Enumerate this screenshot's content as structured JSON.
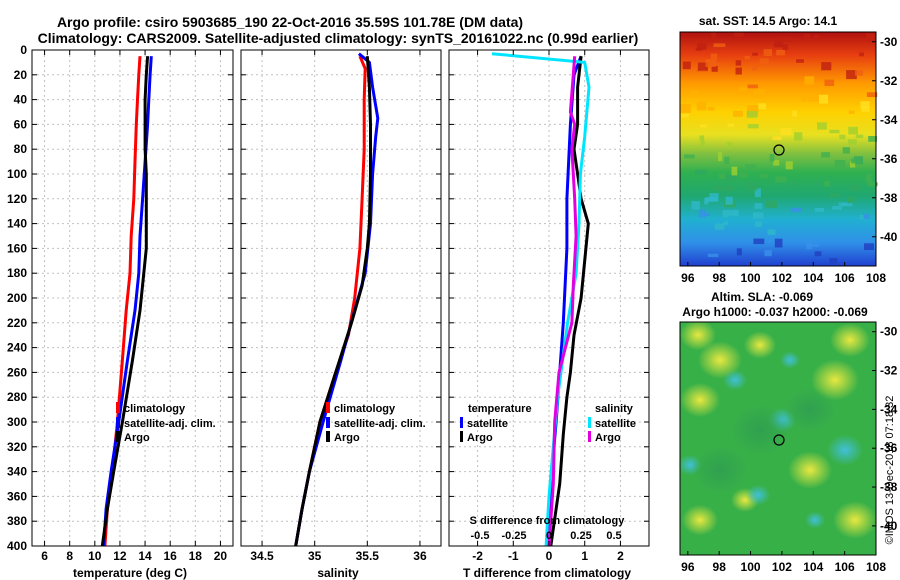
{
  "header": {
    "line1": "Argo profile: csiro 5903685_190 22-Oct-2016 35.59S 101.78E (DM data)",
    "line2": "Climatology: CARS2009. Satellite-adjusted climatology: synTS_20161022.nc (0.99d earlier)"
  },
  "colors": {
    "climatology": "#ff0000",
    "satellite": "#0000ff",
    "argo": "#000000",
    "sat_salinity": "#00e5ff",
    "argo_salinity": "#e000e0",
    "grid": "#c0c0c0"
  },
  "chart_data": [
    {
      "type": "line",
      "title": "",
      "xlabel": "temperature (deg C)",
      "ylabel": "",
      "xlim": [
        5,
        21
      ],
      "ylim": [
        400,
        0
      ],
      "xticks": [
        6,
        8,
        10,
        12,
        14,
        16,
        18,
        20
      ],
      "yticks": [
        0,
        20,
        40,
        60,
        80,
        100,
        120,
        140,
        160,
        180,
        200,
        220,
        240,
        260,
        280,
        300,
        320,
        340,
        360,
        380,
        400
      ],
      "legend": [
        "climatology",
        "satellite-adj. clim.",
        "Argo"
      ],
      "series": [
        {
          "name": "climatology",
          "points": [
            [
              13.6,
              5
            ],
            [
              13.5,
              20
            ],
            [
              13.4,
              40
            ],
            [
              13.3,
              60
            ],
            [
              13.2,
              90
            ],
            [
              13.1,
              120
            ],
            [
              12.9,
              150
            ],
            [
              12.8,
              180
            ],
            [
              12.5,
              210
            ],
            [
              12.2,
              250
            ],
            [
              11.8,
              300
            ],
            [
              11.4,
              340
            ],
            [
              11.0,
              370
            ],
            [
              10.8,
              400
            ]
          ]
        },
        {
          "name": "satellite-adj. clim.",
          "points": [
            [
              14.5,
              5
            ],
            [
              14.4,
              20
            ],
            [
              14.3,
              40
            ],
            [
              14.2,
              60
            ],
            [
              14.0,
              90
            ],
            [
              13.8,
              120
            ],
            [
              13.6,
              150
            ],
            [
              13.5,
              180
            ],
            [
              13.2,
              210
            ],
            [
              12.6,
              250
            ],
            [
              11.9,
              300
            ],
            [
              11.3,
              340
            ],
            [
              10.9,
              370
            ],
            [
              10.7,
              400
            ]
          ]
        },
        {
          "name": "Argo",
          "points": [
            [
              14.2,
              5
            ],
            [
              14.1,
              20
            ],
            [
              14.0,
              40
            ],
            [
              14.0,
              60
            ],
            [
              14.0,
              80
            ],
            [
              14.1,
              100
            ],
            [
              14.1,
              130
            ],
            [
              14.1,
              160
            ],
            [
              13.9,
              180
            ],
            [
              13.6,
              210
            ],
            [
              13.0,
              250
            ],
            [
              12.2,
              300
            ],
            [
              11.5,
              340
            ],
            [
              11.0,
              370
            ],
            [
              10.6,
              400
            ]
          ]
        }
      ]
    },
    {
      "type": "line",
      "xlabel": "salinity",
      "xlim": [
        34.3,
        36.2
      ],
      "xticks": [
        "34.5",
        "35",
        "35.5",
        "36"
      ],
      "ylim": [
        400,
        0
      ],
      "legend": [
        "climatology",
        "satellite-adj. clim.",
        "Argo"
      ],
      "series": [
        {
          "name": "climatology",
          "points": [
            [
              35.43,
              5
            ],
            [
              35.48,
              15
            ],
            [
              35.47,
              40
            ],
            [
              35.47,
              80
            ],
            [
              35.45,
              120
            ],
            [
              35.43,
              160
            ],
            [
              35.38,
              200
            ],
            [
              35.32,
              230
            ],
            [
              35.2,
              260
            ],
            [
              35.05,
              300
            ],
            [
              34.95,
              340
            ],
            [
              34.88,
              370
            ],
            [
              34.82,
              400
            ]
          ]
        },
        {
          "name": "satellite-adj. clim.",
          "points": [
            [
              35.42,
              3
            ],
            [
              35.52,
              10
            ],
            [
              35.55,
              30
            ],
            [
              35.6,
              55
            ],
            [
              35.58,
              70
            ],
            [
              35.55,
              100
            ],
            [
              35.53,
              140
            ],
            [
              35.48,
              180
            ],
            [
              35.38,
              210
            ],
            [
              35.25,
              250
            ],
            [
              35.08,
              300
            ],
            [
              34.95,
              340
            ],
            [
              34.88,
              370
            ],
            [
              34.82,
              400
            ]
          ]
        },
        {
          "name": "Argo",
          "points": [
            [
              35.5,
              5
            ],
            [
              35.52,
              30
            ],
            [
              35.53,
              60
            ],
            [
              35.53,
              100
            ],
            [
              35.52,
              140
            ],
            [
              35.5,
              160
            ],
            [
              35.45,
              190
            ],
            [
              35.35,
              220
            ],
            [
              35.2,
              260
            ],
            [
              35.05,
              300
            ],
            [
              34.95,
              340
            ],
            [
              34.88,
              370
            ],
            [
              34.82,
              400
            ]
          ]
        }
      ]
    },
    {
      "type": "line",
      "xlabel": "T difference from climatology",
      "xlim": [
        -2.8,
        2.8
      ],
      "xticks": [
        "-2",
        "-1",
        "0",
        "1",
        "2"
      ],
      "top_label": "S difference from climatology",
      "top_xticks": [
        "-0.5",
        "-0.25",
        "0",
        "0.25",
        "0.5"
      ],
      "ylim": [
        400,
        0
      ],
      "legend_temperature": {
        "title": "temperature",
        "items": [
          "satellite",
          "Argo"
        ]
      },
      "legend_salinity": {
        "title": "salinity",
        "items": [
          "satellite",
          "Argo"
        ]
      },
      "series": [
        {
          "name": "temperature satellite",
          "points": [
            [
              0.9,
              5
            ],
            [
              0.7,
              20
            ],
            [
              0.6,
              60
            ],
            [
              0.5,
              120
            ],
            [
              0.5,
              160
            ],
            [
              0.4,
              220
            ],
            [
              0.2,
              300
            ],
            [
              0.05,
              350
            ],
            [
              0.0,
              400
            ]
          ]
        },
        {
          "name": "temperature Argo",
          "points": [
            [
              0.9,
              5
            ],
            [
              0.8,
              30
            ],
            [
              0.8,
              60
            ],
            [
              0.7,
              80
            ],
            [
              0.8,
              100
            ],
            [
              0.9,
              120
            ],
            [
              1.1,
              140
            ],
            [
              1.0,
              170
            ],
            [
              0.9,
              200
            ],
            [
              0.7,
              230
            ],
            [
              0.6,
              260
            ],
            [
              0.5,
              280
            ],
            [
              0.4,
              310
            ],
            [
              0.3,
              350
            ],
            [
              0.05,
              400
            ]
          ]
        },
        {
          "name": "salinity satellite",
          "points": [
            [
              -0.4,
              3
            ],
            [
              0.25,
              10
            ],
            [
              0.28,
              30
            ],
            [
              0.25,
              70
            ],
            [
              0.22,
              100
            ],
            [
              0.21,
              140
            ],
            [
              0.19,
              180
            ],
            [
              0.13,
              220
            ],
            [
              0.06,
              280
            ],
            [
              0.03,
              320
            ],
            [
              0.0,
              360
            ],
            [
              -0.02,
              400
            ]
          ]
        },
        {
          "name": "salinity Argo",
          "points": [
            [
              0.18,
              5
            ],
            [
              0.17,
              20
            ],
            [
              0.15,
              50
            ],
            [
              0.18,
              60
            ],
            [
              0.16,
              80
            ],
            [
              0.18,
              120
            ],
            [
              0.19,
              150
            ],
            [
              0.17,
              190
            ],
            [
              0.16,
              220
            ],
            [
              0.07,
              260
            ],
            [
              0.04,
              300
            ],
            [
              0.03,
              350
            ],
            [
              0.0,
              400
            ]
          ]
        }
      ]
    },
    {
      "type": "heatmap",
      "title": "sat. SST: 14.5 Argo: 14.1",
      "xticks": [
        "96",
        "98",
        "100",
        "102",
        "104",
        "106",
        "108"
      ],
      "yticks": [
        "-30",
        "-32",
        "-34",
        "-36",
        "-38",
        "-40"
      ],
      "marker": [
        101.78,
        -35.59
      ]
    },
    {
      "type": "heatmap",
      "title_line1": "Altim. SLA: -0.069",
      "title_line2": "Argo h1000: -0.037 h2000: -0.069",
      "xticks": [
        "96",
        "98",
        "100",
        "102",
        "104",
        "106",
        "108"
      ],
      "yticks": [
        "-30",
        "-32",
        "-34",
        "-36",
        "-38",
        "-40"
      ],
      "marker": [
        101.78,
        -35.59
      ]
    }
  ],
  "credit": "©IMOS 13-Dec-2018 07:18:32"
}
